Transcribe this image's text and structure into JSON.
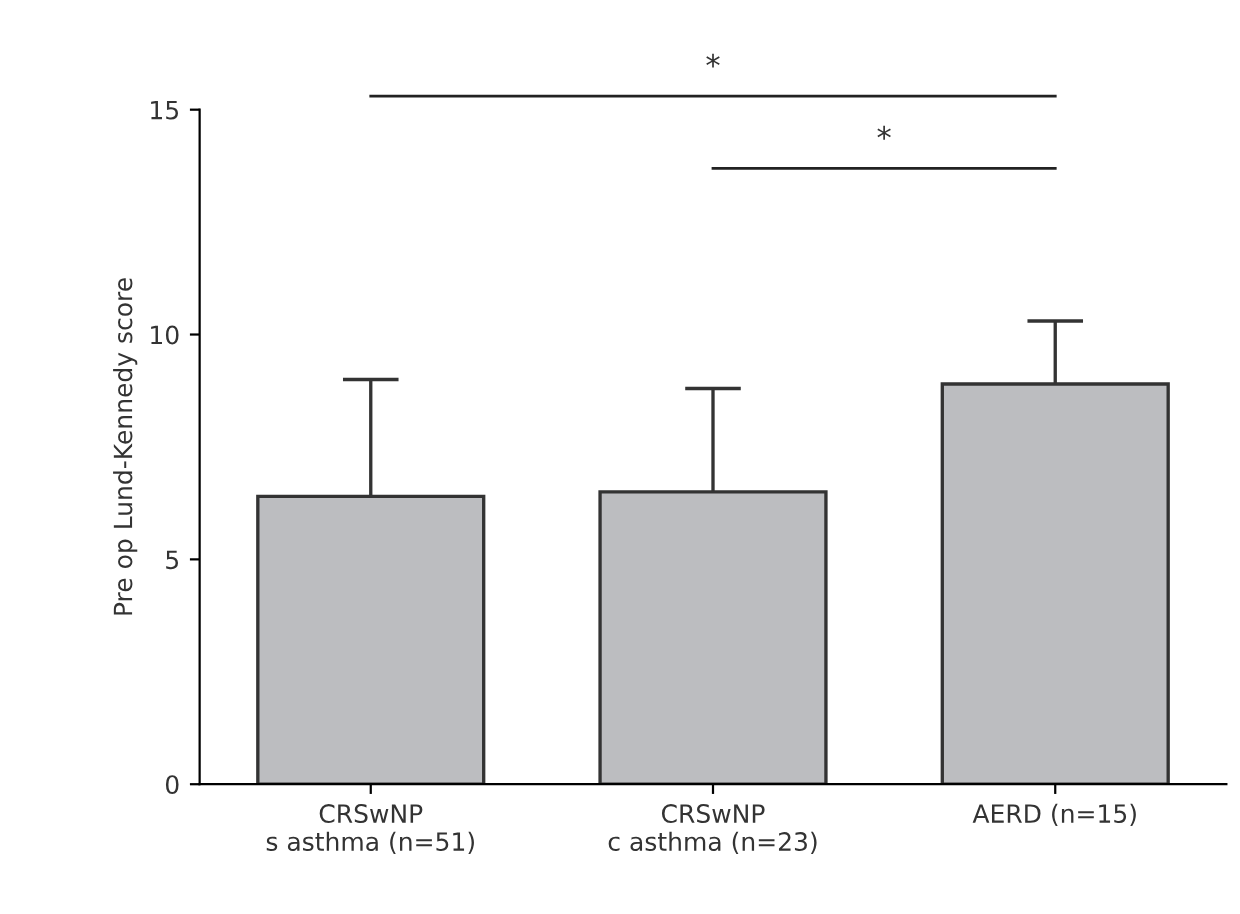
{
  "chart_data": {
    "type": "bar",
    "ylabel": "Pre op Lund-Kennedy score",
    "categories": [
      "CRSwNP\ns asthma (n=51)",
      "CRSwNP\nc asthma (n=23)",
      "AERD (n=15)"
    ],
    "values": [
      6.4,
      6.5,
      8.9
    ],
    "errors": [
      2.6,
      2.3,
      1.4
    ],
    "color": "#bcbdc0",
    "ylim": [
      0,
      15
    ],
    "yticks": [
      0,
      5,
      10,
      15
    ],
    "grid": false,
    "legend": false,
    "annotations": [
      "*",
      "*"
    ]
  }
}
